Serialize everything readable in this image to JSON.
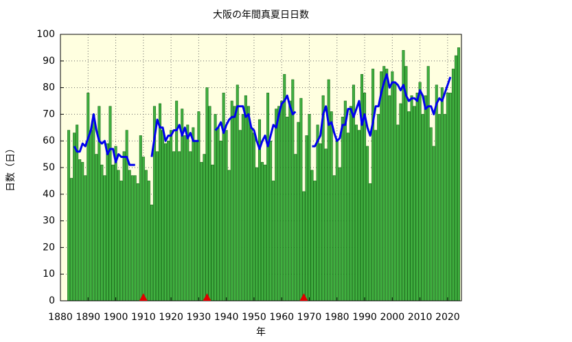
{
  "chart_data": {
    "type": "bar_line",
    "title": "大阪の年間真夏日日数",
    "xlabel": "年",
    "ylabel": "日数（日）",
    "xlim": [
      1880,
      2025
    ],
    "xticks": [
      1880,
      1890,
      1900,
      1910,
      1920,
      1930,
      1940,
      1950,
      1960,
      1970,
      1980,
      1990,
      2000,
      2010,
      2020
    ],
    "ylim": [
      0,
      100
    ],
    "yticks": [
      0,
      10,
      20,
      30,
      40,
      50,
      60,
      70,
      80,
      90,
      100
    ],
    "grid": true,
    "background": "#ffffe0",
    "x": [
      1883,
      1884,
      1885,
      1886,
      1887,
      1888,
      1889,
      1890,
      1891,
      1892,
      1893,
      1894,
      1895,
      1896,
      1897,
      1898,
      1899,
      1900,
      1901,
      1902,
      1903,
      1904,
      1905,
      1906,
      1907,
      1908,
      1909,
      1910,
      1911,
      1912,
      1913,
      1914,
      1915,
      1916,
      1917,
      1918,
      1919,
      1920,
      1921,
      1922,
      1923,
      1924,
      1925,
      1926,
      1927,
      1928,
      1929,
      1930,
      1931,
      1932,
      1933,
      1934,
      1935,
      1936,
      1937,
      1938,
      1939,
      1940,
      1941,
      1942,
      1943,
      1944,
      1945,
      1946,
      1947,
      1948,
      1949,
      1950,
      1951,
      1952,
      1953,
      1954,
      1955,
      1956,
      1957,
      1958,
      1959,
      1960,
      1961,
      1962,
      1963,
      1964,
      1965,
      1966,
      1967,
      1968,
      1969,
      1970,
      1971,
      1972,
      1973,
      1974,
      1975,
      1976,
      1977,
      1978,
      1979,
      1980,
      1981,
      1982,
      1983,
      1984,
      1985,
      1986,
      1987,
      1988,
      1989,
      1990,
      1991,
      1992,
      1993,
      1994,
      1995,
      1996,
      1997,
      1998,
      1999,
      2000,
      2001,
      2002,
      2003,
      2004,
      2005,
      2006,
      2007,
      2008,
      2009,
      2010,
      2011,
      2012,
      2013,
      2014,
      2015,
      2016,
      2017,
      2018,
      2019,
      2020,
      2021,
      2022,
      2023,
      2024
    ],
    "series": [
      {
        "kind": "bar",
        "color": "#40b040",
        "values": [
          64,
          46,
          63,
          66,
          53,
          52,
          47,
          78,
          64,
          70,
          55,
          73,
          51,
          47,
          59,
          73,
          51,
          58,
          49,
          45,
          56,
          64,
          49,
          47,
          47,
          44,
          62,
          54,
          49,
          45,
          36,
          73,
          56,
          74,
          64,
          59,
          60,
          64,
          56,
          75,
          56,
          72,
          62,
          66,
          56,
          65,
          60,
          71,
          52,
          55,
          80,
          73,
          51,
          70,
          65,
          60,
          78,
          64,
          49,
          75,
          73,
          81,
          64,
          70,
          77,
          73,
          65,
          63,
          50,
          68,
          52,
          51,
          78,
          60,
          45,
          72,
          73,
          75,
          85,
          69,
          75,
          83,
          55,
          67,
          76,
          41,
          62,
          70,
          49,
          45,
          66,
          59,
          77,
          57,
          83,
          71,
          47,
          60,
          50,
          69,
          75,
          63,
          73,
          81,
          66,
          64,
          85,
          78,
          58,
          44,
          87,
          64,
          70,
          86,
          88,
          87,
          77,
          86,
          82,
          66,
          74,
          94,
          88,
          71,
          77,
          73,
          78,
          82,
          70,
          77,
          88,
          65,
          58,
          81,
          70,
          80,
          70,
          78,
          78,
          87,
          92,
          95
        ]
      },
      {
        "kind": "line",
        "color": "#0000ee",
        "values": [
          null,
          null,
          58,
          56,
          56,
          59,
          58,
          61,
          64,
          70,
          64,
          60,
          59,
          60,
          55,
          57,
          57,
          52,
          55,
          54,
          54,
          54,
          51,
          51,
          51,
          null,
          null,
          null,
          null,
          null,
          54,
          61,
          68,
          65,
          65,
          60,
          62,
          62,
          64,
          64,
          66,
          62,
          65,
          61,
          63,
          60,
          60,
          60,
          null,
          null,
          null,
          null,
          null,
          64,
          65,
          67,
          63,
          66,
          68,
          69,
          69,
          73,
          73,
          73,
          69,
          70,
          65,
          64,
          60,
          57,
          60,
          62,
          58,
          62,
          66,
          65,
          70,
          74,
          75,
          77,
          73,
          70,
          71,
          null,
          null,
          null,
          null,
          null,
          58,
          58,
          60,
          62,
          70,
          73,
          66,
          67,
          63,
          60,
          61,
          66,
          66,
          72,
          72,
          69,
          72,
          75,
          66,
          70,
          65,
          62,
          67,
          73,
          73,
          78,
          82,
          85,
          80,
          82,
          82,
          81,
          79,
          81,
          77,
          75,
          76,
          76,
          75,
          79,
          77,
          72,
          73,
          73,
          70,
          74,
          76,
          75,
          78,
          81,
          84,
          null,
          null,
          null
        ]
      }
    ],
    "markers": {
      "color": "#e00000",
      "x": [
        1910,
        1933,
        1968
      ]
    }
  }
}
